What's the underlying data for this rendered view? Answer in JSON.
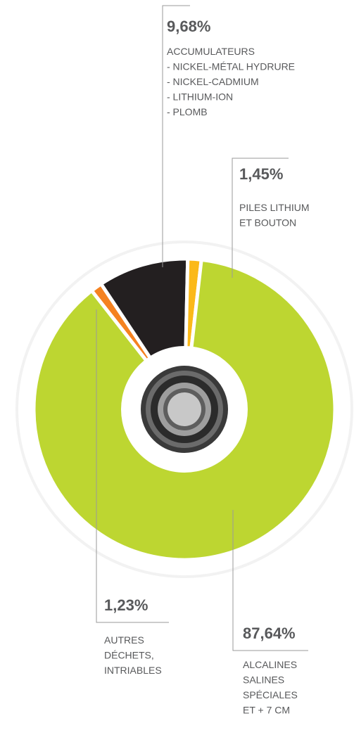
{
  "chart_data": {
    "type": "pie",
    "donut": true,
    "categories": [
      [
        "AUTRES",
        "DÉCHETS,",
        "INTRIABLES"
      ],
      [
        "ACCUMULATEURS",
        "- NICKEL-MÉTAL HYDRURE",
        "- NICKEL-CADMIUM",
        "- LITHIUM-ION",
        "- PLOMB"
      ],
      [
        "PILES LITHIUM",
        "ET BOUTON"
      ],
      [
        "ALCALINES",
        "SALINES",
        "SPÉCIALES",
        "ET + 7 CM"
      ]
    ],
    "values": [
      1.23,
      9.68,
      1.45,
      87.64
    ],
    "value_labels": [
      "1,23%",
      "9,68%",
      "1,45%",
      "87,64%"
    ],
    "colors": [
      "#f58220",
      "#231f20",
      "#fbb919",
      "#bdd631"
    ]
  }
}
